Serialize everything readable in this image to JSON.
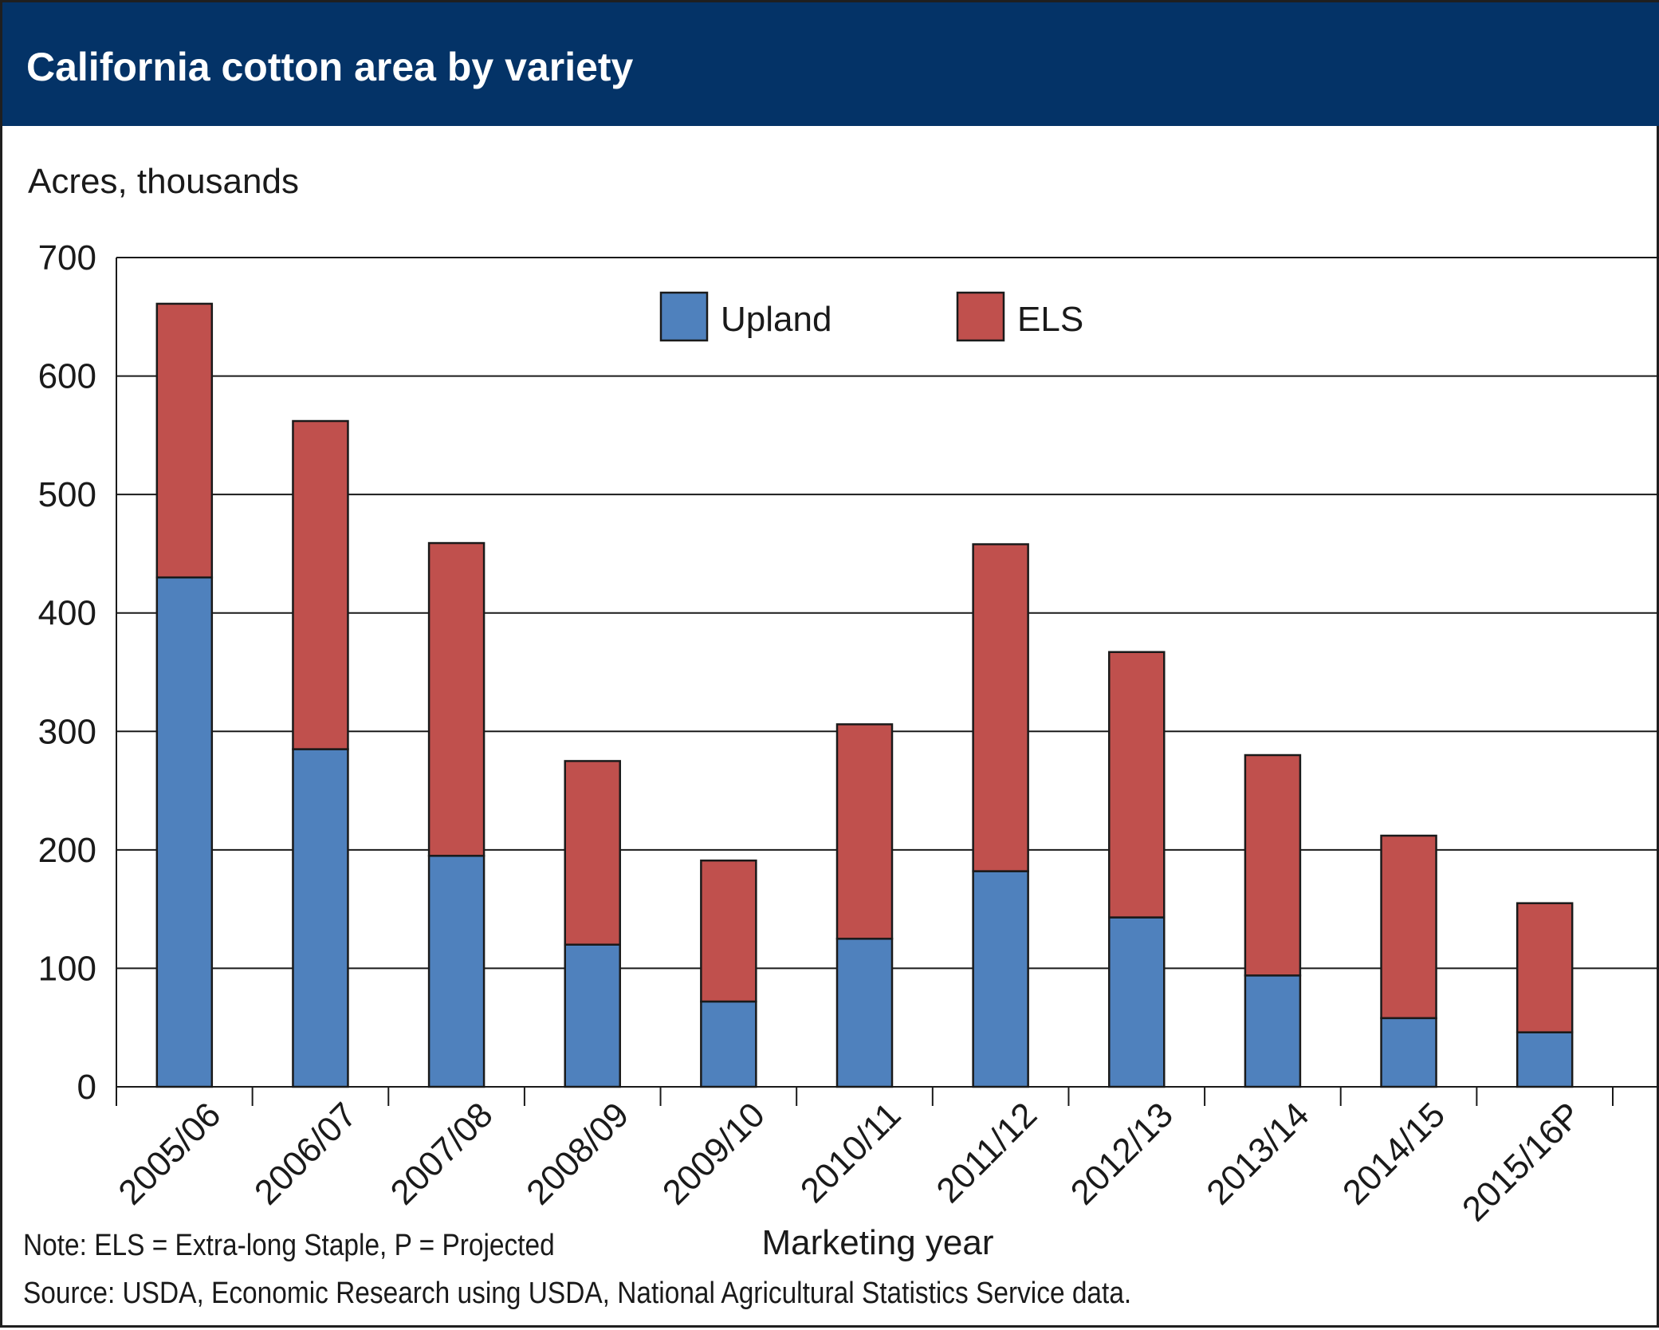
{
  "header": {
    "title": "California cotton area by variety"
  },
  "footer": {
    "note": "Note: ELS = Extra-long Staple, P = Projected",
    "source": "Source:  USDA, Economic Research using USDA, National Agricultural Statistics Service data."
  },
  "chart_data": {
    "type": "bar",
    "stacked": true,
    "ylabel": "Acres, thousands",
    "xlabel": "Marketing year",
    "ylim": [
      0,
      700
    ],
    "yticks": [
      0,
      100,
      200,
      300,
      400,
      500,
      600,
      700
    ],
    "grid": true,
    "legend_position": "top-center",
    "categories": [
      "2005/06",
      "2006/07",
      "2007/08",
      "2008/09",
      "2009/10",
      "2010/11",
      "2011/12",
      "2012/13",
      "2013/14",
      "2014/15",
      "2015/16P"
    ],
    "series": [
      {
        "name": "Upland",
        "color": "#4f81bd",
        "values": [
          430,
          285,
          195,
          120,
          72,
          125,
          182,
          143,
          94,
          58,
          46
        ]
      },
      {
        "name": "ELS",
        "color": "#c0504d",
        "values": [
          231,
          277,
          264,
          155,
          119,
          181,
          276,
          224,
          186,
          154,
          109
        ]
      }
    ]
  }
}
